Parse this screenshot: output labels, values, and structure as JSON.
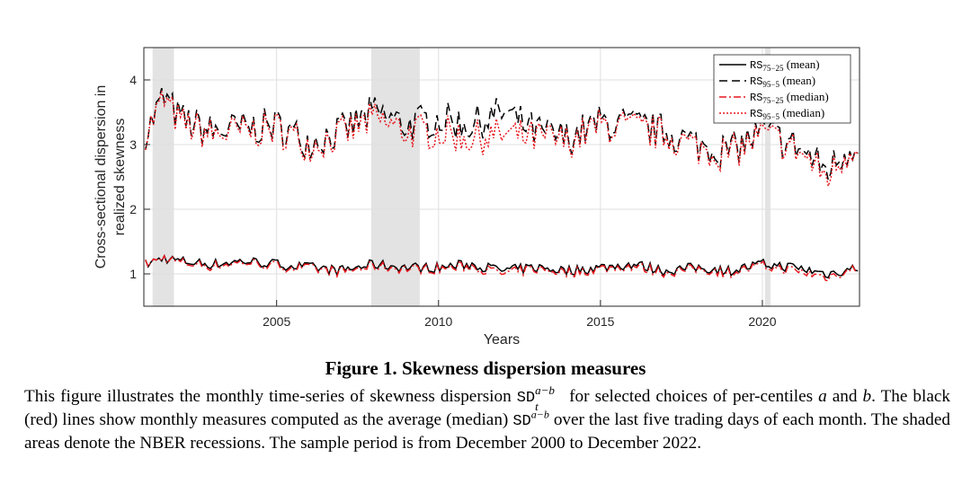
{
  "figure": {
    "caption_label": "Figure 1.",
    "caption_title": "Skewness dispersion measures",
    "caption_text_parts": {
      "p1": "This figure illustrates the monthly time-series of skewness dispersion",
      "sd": "SD",
      "sd_sup": "a−b",
      "sd_sub": "t",
      "p2": "for selected choices of per-centiles",
      "a": "a",
      "and": "and",
      "b": "b",
      "p3": ". The black (red) lines show monthly measures computed as the average (median)",
      "sd2": "SD",
      "sd2_sup": "a−b",
      "p4": "over the last five trading days of each month. The shaded areas denote the NBER recessions. The sample period is from December 2000 to December 2022."
    }
  },
  "chart_data": {
    "type": "line",
    "xlabel": "Years",
    "ylabel_line1": "Cross-sectional dispersion in",
    "ylabel_line2": "realized skewness",
    "xlim": [
      2000.9,
      2023.0
    ],
    "ylim": [
      0.5,
      4.5
    ],
    "xticks": [
      2005,
      2010,
      2015,
      2020
    ],
    "xtick_labels": [
      "2005",
      "2010",
      "2015",
      "2020"
    ],
    "yticks": [
      1,
      2,
      3,
      4
    ],
    "ytick_labels": [
      "1",
      "2",
      "3",
      "4"
    ],
    "grid": true,
    "legend_position": "top-right",
    "recessions": [
      [
        2001.17,
        2001.83
      ],
      [
        2007.92,
        2009.42
      ],
      [
        2020.08,
        2020.25
      ]
    ],
    "colors": {
      "black": "#000000",
      "red": "#e8191f",
      "shade": "#e3e3e3"
    },
    "series": [
      {
        "name": "RS75−25 (mean)",
        "legend_base": "RS",
        "legend_sub": "75−25",
        "legend_suffix": "(mean)",
        "style": "solid",
        "color": "#000000",
        "x": [
          2001.0,
          2001.5,
          2002.0,
          2003.0,
          2004.0,
          2005.0,
          2006.0,
          2007.0,
          2008.0,
          2009.0,
          2010.0,
          2011.0,
          2012.0,
          2013.0,
          2014.0,
          2015.0,
          2016.0,
          2017.0,
          2018.0,
          2019.0,
          2020.0,
          2021.0,
          2022.0,
          2023.0
        ],
        "values": [
          1.15,
          1.25,
          1.2,
          1.15,
          1.2,
          1.15,
          1.1,
          1.05,
          1.15,
          1.1,
          1.1,
          1.15,
          1.05,
          1.1,
          1.05,
          1.1,
          1.15,
          1.05,
          1.1,
          1.05,
          1.15,
          1.1,
          1.0,
          1.1
        ]
      },
      {
        "name": "RS95−5 (mean)",
        "legend_base": "RS",
        "legend_sub": "95−5",
        "legend_suffix": "(mean)",
        "style": "dashed",
        "color": "#000000",
        "x": [
          2001.0,
          2001.5,
          2002.0,
          2003.0,
          2004.0,
          2005.0,
          2006.0,
          2007.0,
          2008.0,
          2009.0,
          2010.0,
          2011.0,
          2012.0,
          2013.0,
          2014.0,
          2015.0,
          2016.0,
          2017.0,
          2018.0,
          2019.0,
          2020.0,
          2021.0,
          2022.0,
          2023.0
        ],
        "values": [
          3.2,
          3.75,
          3.4,
          3.2,
          3.25,
          3.3,
          3.05,
          3.2,
          3.5,
          3.3,
          3.4,
          3.3,
          3.5,
          3.2,
          3.1,
          3.35,
          3.3,
          3.2,
          3.0,
          2.9,
          3.2,
          3.0,
          2.6,
          3.1
        ]
      },
      {
        "name": "RS75−25 (median)",
        "legend_base": "RS",
        "legend_sub": "75−25",
        "legend_suffix": "(median)",
        "style": "dashdot",
        "color": "#e8191f",
        "x": [
          2001.0,
          2001.5,
          2002.0,
          2003.0,
          2004.0,
          2005.0,
          2006.0,
          2007.0,
          2008.0,
          2009.0,
          2010.0,
          2011.0,
          2012.0,
          2013.0,
          2014.0,
          2015.0,
          2016.0,
          2017.0,
          2018.0,
          2019.0,
          2020.0,
          2021.0,
          2022.0,
          2023.0
        ],
        "values": [
          1.15,
          1.25,
          1.18,
          1.12,
          1.18,
          1.12,
          1.08,
          1.03,
          1.12,
          1.08,
          1.08,
          1.12,
          1.0,
          1.08,
          1.02,
          1.08,
          1.12,
          1.02,
          1.08,
          1.02,
          1.12,
          1.05,
          0.95,
          1.1
        ]
      },
      {
        "name": "RS95−5 (median)",
        "legend_base": "RS",
        "legend_sub": "95−5",
        "legend_suffix": "(median)",
        "style": "dotted",
        "color": "#e8191f",
        "x": [
          2001.0,
          2001.5,
          2002.0,
          2003.0,
          2004.0,
          2005.0,
          2006.0,
          2007.0,
          2008.0,
          2009.0,
          2010.0,
          2011.0,
          2012.0,
          2013.0,
          2014.0,
          2015.0,
          2016.0,
          2017.0,
          2018.0,
          2019.0,
          2020.0,
          2021.0,
          2022.0,
          2023.0
        ],
        "values": [
          3.2,
          3.7,
          3.35,
          3.15,
          3.2,
          3.25,
          3.0,
          3.15,
          3.4,
          3.2,
          3.2,
          3.1,
          3.15,
          3.1,
          3.05,
          3.3,
          3.25,
          3.15,
          2.95,
          2.85,
          3.15,
          2.95,
          2.5,
          3.1
        ]
      }
    ]
  }
}
